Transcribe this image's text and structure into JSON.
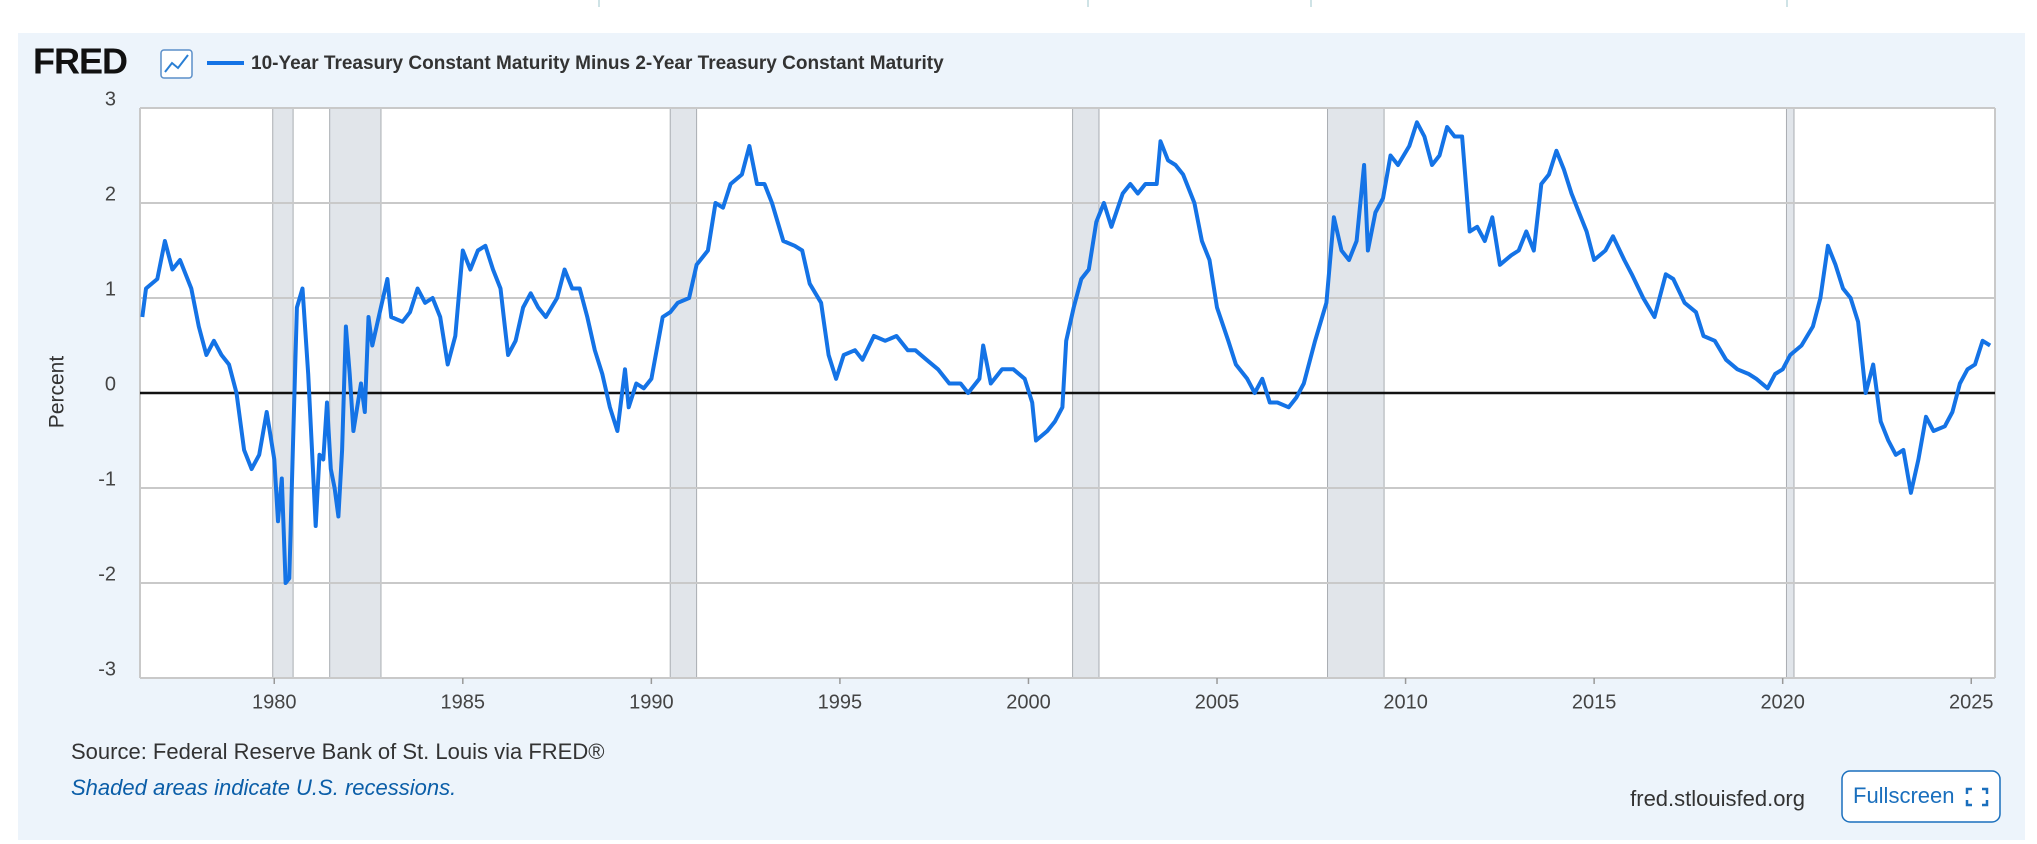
{
  "chart_data": {
    "type": "line",
    "logo": "FRED",
    "title": "10-Year Treasury Constant Maturity Minus 2-Year Treasury Constant Maturity",
    "y_label": "Percent",
    "source": "Source: Federal Reserve Bank of St. Louis via FRED®",
    "note": "Shaded areas indicate U.S. recessions.",
    "site": "fred.stlouisfed.org",
    "button": "Fullscreen",
    "xlim": [
      1976.44,
      2025.63
    ],
    "xticks": [
      1980,
      1985,
      1990,
      1995,
      2000,
      2005,
      2010,
      2015,
      2020,
      2025
    ],
    "ylim": [
      -3,
      3
    ],
    "yticks": [
      -3,
      -2,
      -1,
      0,
      1,
      2,
      3
    ],
    "grid": true,
    "recessions": [
      [
        1979.96,
        1980.5
      ],
      [
        1981.47,
        1982.83
      ],
      [
        1990.5,
        1991.2
      ],
      [
        2001.17,
        2001.87
      ],
      [
        2007.93,
        2009.43
      ],
      [
        2020.1,
        2020.3
      ]
    ],
    "x": [
      1976.5,
      1976.6,
      1976.9,
      1977.1,
      1977.3,
      1977.5,
      1977.8,
      1978.0,
      1978.2,
      1978.4,
      1978.6,
      1978.8,
      1979.0,
      1979.2,
      1979.4,
      1979.6,
      1979.8,
      1980.0,
      1980.1,
      1980.2,
      1980.3,
      1980.4,
      1980.5,
      1980.6,
      1980.75,
      1980.9,
      1981.0,
      1981.1,
      1981.2,
      1981.3,
      1981.4,
      1981.5,
      1981.6,
      1981.7,
      1981.8,
      1981.9,
      1982.0,
      1982.1,
      1982.3,
      1982.4,
      1982.5,
      1982.6,
      1982.8,
      1983.0,
      1983.1,
      1983.4,
      1983.6,
      1983.8,
      1984.0,
      1984.2,
      1984.4,
      1984.6,
      1984.8,
      1985.0,
      1985.2,
      1985.4,
      1985.6,
      1985.8,
      1986.0,
      1986.2,
      1986.4,
      1986.6,
      1986.8,
      1987.0,
      1987.2,
      1987.5,
      1987.7,
      1987.9,
      1988.1,
      1988.3,
      1988.5,
      1988.7,
      1988.9,
      1989.1,
      1989.3,
      1989.4,
      1989.6,
      1989.8,
      1990.0,
      1990.3,
      1990.5,
      1990.7,
      1991.0,
      1991.2,
      1991.5,
      1991.7,
      1991.9,
      1992.1,
      1992.4,
      1992.6,
      1992.8,
      1993.0,
      1993.2,
      1993.5,
      1993.8,
      1994.0,
      1994.2,
      1994.5,
      1994.7,
      1994.9,
      1995.1,
      1995.4,
      1995.6,
      1995.9,
      1996.2,
      1996.5,
      1996.8,
      1997.0,
      1997.3,
      1997.6,
      1997.9,
      1998.2,
      1998.4,
      1998.7,
      1998.8,
      1999.0,
      1999.3,
      1999.6,
      1999.9,
      2000.1,
      2000.2,
      2000.5,
      2000.7,
      2000.9,
      2001.0,
      2001.2,
      2001.4,
      2001.6,
      2001.8,
      2002.0,
      2002.2,
      2002.5,
      2002.7,
      2002.9,
      2003.1,
      2003.4,
      2003.5,
      2003.7,
      2003.9,
      2004.1,
      2004.4,
      2004.6,
      2004.8,
      2005.0,
      2005.3,
      2005.5,
      2005.8,
      2006.0,
      2006.2,
      2006.4,
      2006.6,
      2006.9,
      2007.1,
      2007.3,
      2007.6,
      2007.9,
      2008.1,
      2008.3,
      2008.5,
      2008.7,
      2008.9,
      2009.0,
      2009.2,
      2009.4,
      2009.6,
      2009.8,
      2010.1,
      2010.3,
      2010.5,
      2010.7,
      2010.9,
      2011.1,
      2011.3,
      2011.5,
      2011.7,
      2011.9,
      2012.1,
      2012.3,
      2012.5,
      2012.8,
      2013.0,
      2013.2,
      2013.4,
      2013.6,
      2013.8,
      2014.0,
      2014.2,
      2014.4,
      2014.6,
      2014.8,
      2015.0,
      2015.3,
      2015.5,
      2015.8,
      2016.0,
      2016.3,
      2016.6,
      2016.9,
      2017.1,
      2017.4,
      2017.7,
      2017.9,
      2018.2,
      2018.5,
      2018.8,
      2019.1,
      2019.3,
      2019.6,
      2019.8,
      2020.0,
      2020.2,
      2020.5,
      2020.8,
      2021.0,
      2021.2,
      2021.4,
      2021.6,
      2021.8,
      2022.0,
      2022.2,
      2022.4,
      2022.6,
      2022.8,
      2023.0,
      2023.2,
      2023.4,
      2023.6,
      2023.8,
      2024.0,
      2024.3,
      2024.5,
      2024.7,
      2024.9,
      2025.1,
      2025.3,
      2025.5
    ],
    "series": [
      {
        "name": "10-Year Treasury Constant Maturity Minus 2-Year Treasury Constant Maturity",
        "color": "#1473e6",
        "values": [
          0.8,
          1.1,
          1.2,
          1.6,
          1.3,
          1.4,
          1.1,
          0.7,
          0.4,
          0.55,
          0.4,
          0.3,
          0.0,
          -0.6,
          -0.8,
          -0.65,
          -0.2,
          -0.7,
          -1.35,
          -0.9,
          -2.0,
          -1.95,
          -0.5,
          0.9,
          1.1,
          0.2,
          -0.6,
          -1.4,
          -0.65,
          -0.7,
          -0.1,
          -0.8,
          -1.0,
          -1.3,
          -0.6,
          0.7,
          0.2,
          -0.4,
          0.1,
          -0.2,
          0.8,
          0.5,
          0.85,
          1.2,
          0.8,
          0.75,
          0.85,
          1.1,
          0.95,
          1.0,
          0.8,
          0.3,
          0.6,
          1.5,
          1.3,
          1.5,
          1.55,
          1.3,
          1.1,
          0.4,
          0.55,
          0.9,
          1.05,
          0.9,
          0.8,
          1.0,
          1.3,
          1.1,
          1.1,
          0.8,
          0.45,
          0.2,
          -0.15,
          -0.4,
          0.25,
          -0.15,
          0.1,
          0.05,
          0.15,
          0.8,
          0.85,
          0.95,
          1.0,
          1.35,
          1.5,
          2.0,
          1.95,
          2.2,
          2.3,
          2.6,
          2.2,
          2.2,
          2.0,
          1.6,
          1.55,
          1.5,
          1.15,
          0.95,
          0.4,
          0.15,
          0.4,
          0.45,
          0.35,
          0.6,
          0.55,
          0.6,
          0.45,
          0.45,
          0.35,
          0.25,
          0.1,
          0.1,
          0.0,
          0.15,
          0.5,
          0.1,
          0.25,
          0.25,
          0.15,
          -0.1,
          -0.5,
          -0.4,
          -0.3,
          -0.15,
          0.55,
          0.9,
          1.2,
          1.3,
          1.8,
          2.0,
          1.75,
          2.1,
          2.2,
          2.1,
          2.2,
          2.2,
          2.65,
          2.45,
          2.4,
          2.3,
          2.0,
          1.6,
          1.4,
          0.9,
          0.55,
          0.3,
          0.15,
          0.0,
          0.15,
          -0.1,
          -0.1,
          -0.15,
          -0.05,
          0.1,
          0.55,
          0.95,
          1.85,
          1.5,
          1.4,
          1.6,
          2.4,
          1.5,
          1.9,
          2.05,
          2.5,
          2.4,
          2.6,
          2.85,
          2.7,
          2.4,
          2.5,
          2.8,
          2.7,
          2.7,
          1.7,
          1.75,
          1.6,
          1.85,
          1.35,
          1.45,
          1.5,
          1.7,
          1.5,
          2.2,
          2.3,
          2.55,
          2.35,
          2.1,
          1.9,
          1.7,
          1.4,
          1.5,
          1.65,
          1.4,
          1.25,
          1.0,
          0.8,
          1.25,
          1.2,
          0.95,
          0.85,
          0.6,
          0.55,
          0.35,
          0.25,
          0.2,
          0.15,
          0.05,
          0.2,
          0.25,
          0.4,
          0.5,
          0.7,
          1.0,
          1.55,
          1.35,
          1.1,
          1.0,
          0.75,
          0.0,
          0.3,
          -0.3,
          -0.5,
          -0.65,
          -0.6,
          -1.05,
          -0.7,
          -0.25,
          -0.4,
          -0.35,
          -0.2,
          0.1,
          0.25,
          0.3,
          0.55,
          0.5
        ]
      }
    ]
  }
}
